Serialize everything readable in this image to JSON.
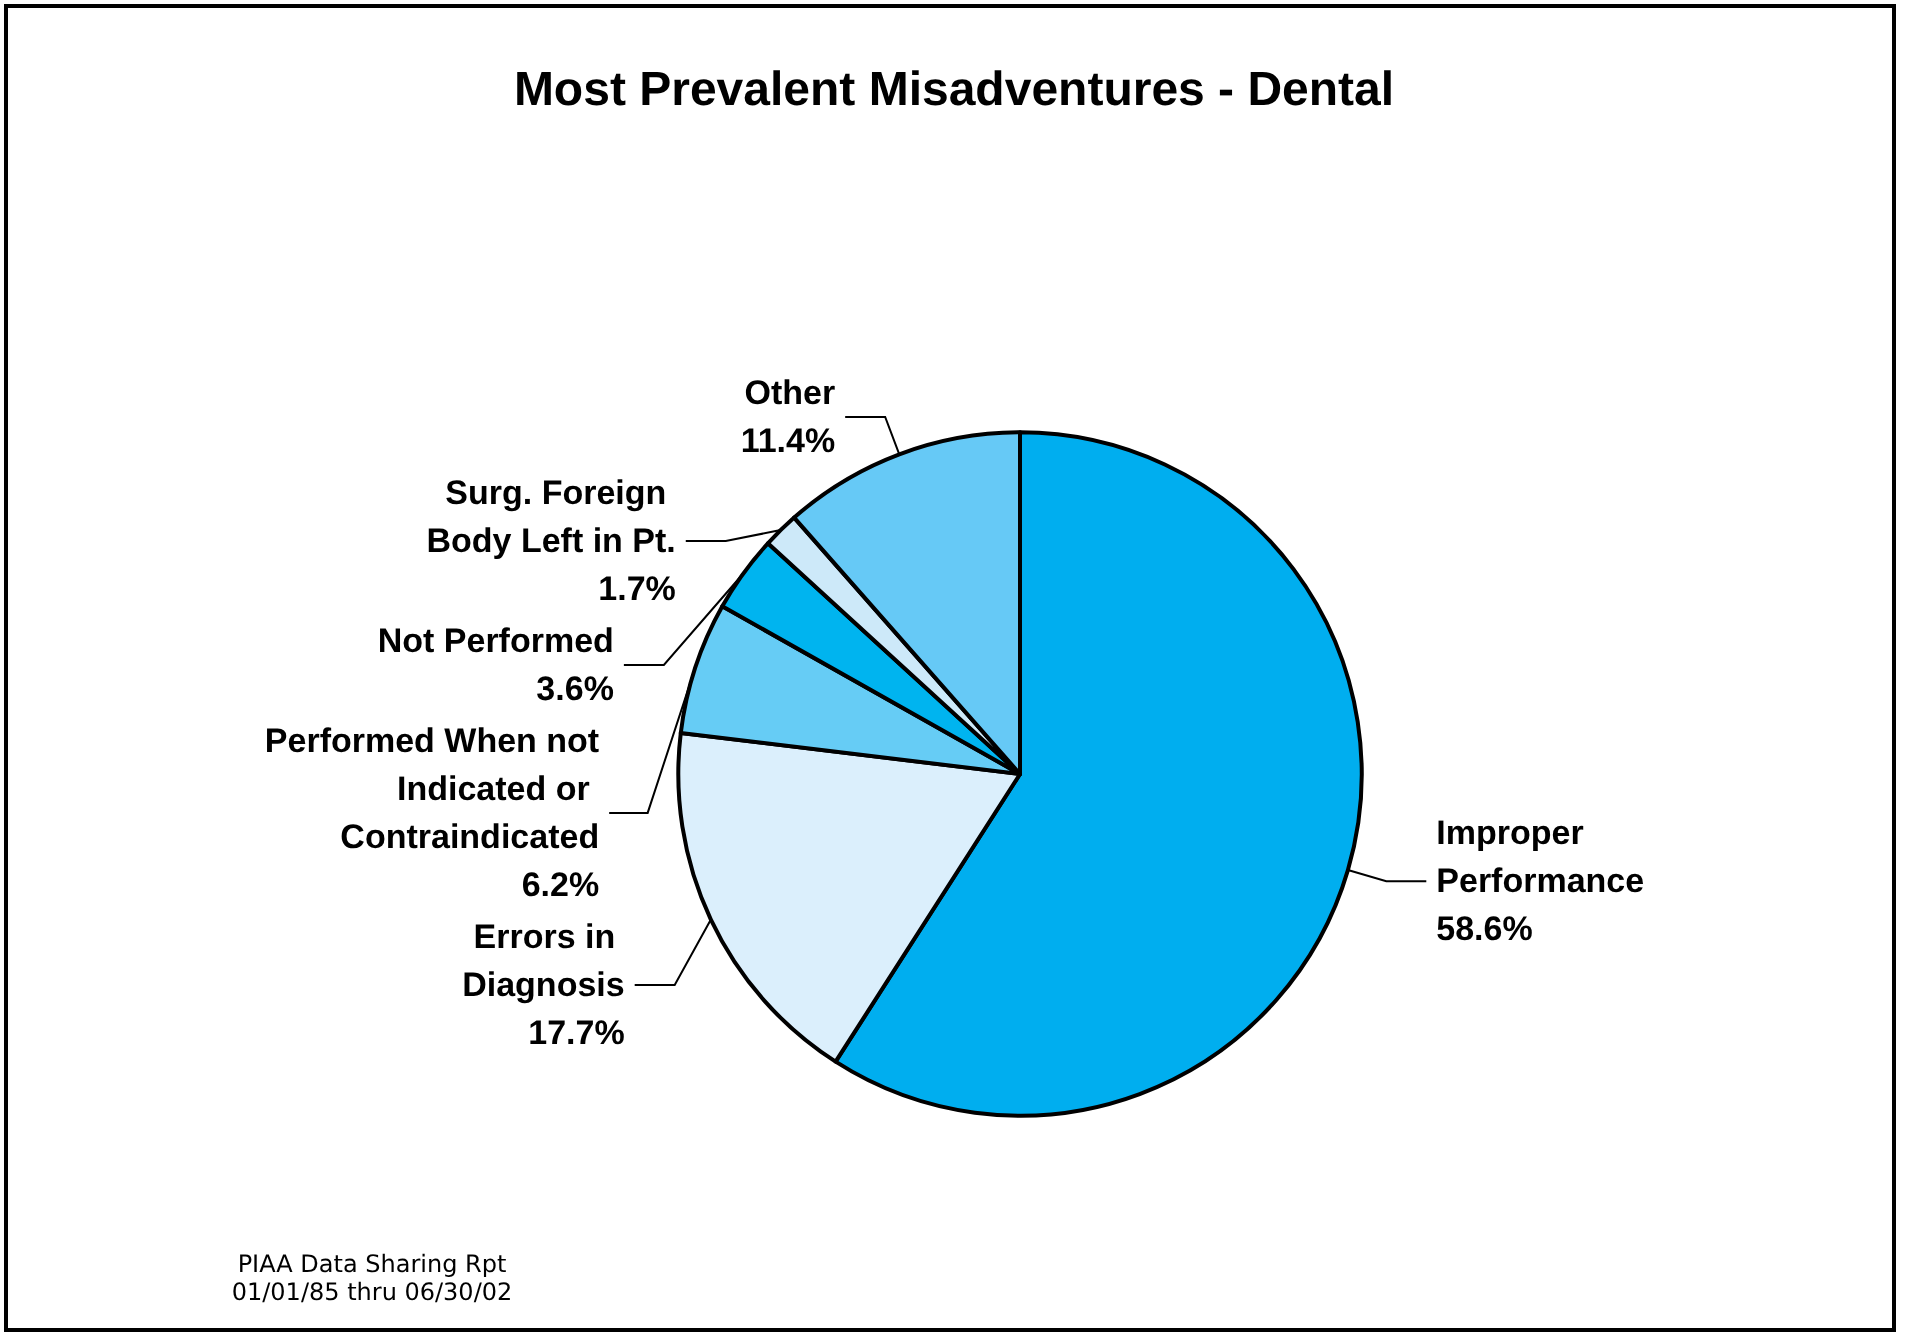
{
  "chart_data": {
    "type": "pie",
    "title": "Most Prevalent Misadventures - Dental",
    "categories": [
      "Improper Performance",
      "Errors in Diagnosis",
      "Performed When not Indicated or Contraindicated",
      "Not Performed",
      "Surg. Foreign Body Left in Pt.",
      "Other"
    ],
    "values": [
      58.6,
      17.7,
      6.2,
      3.6,
      1.7,
      11.4
    ],
    "colors": [
      "#00aeef",
      "#dbeffc",
      "#66ccf5",
      "#00b4ef",
      "#cde9f9",
      "#66c9f6"
    ],
    "value_labels": [
      "58.6%",
      "17.7%",
      "6.2%",
      "3.6%",
      "1.7%",
      "11.4%"
    ],
    "legend": false,
    "annotations": [
      "PIAA Data Sharing Rpt 01/01/85 thru 06/30/02"
    ]
  }
}
